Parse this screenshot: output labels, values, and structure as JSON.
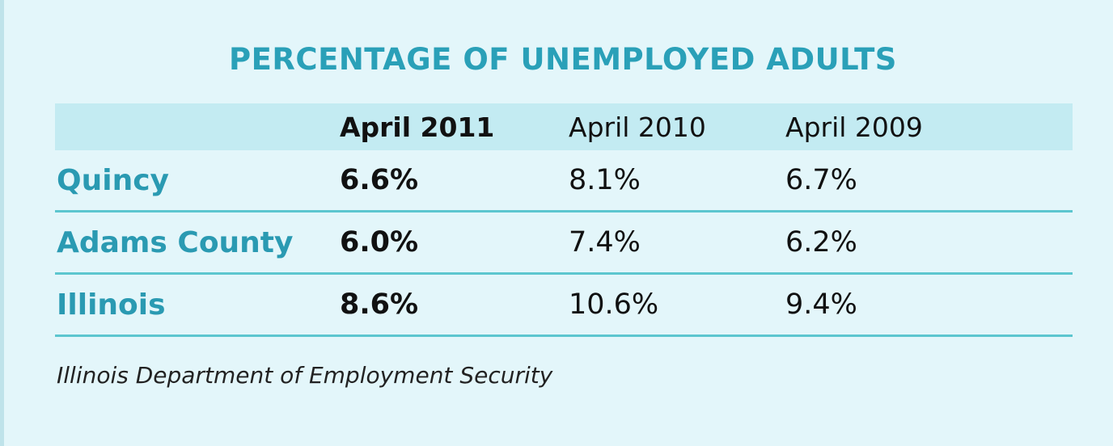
{
  "chart_data": {
    "type": "table",
    "title": "PERCENTAGE OF UNEMPLOYED ADULTS",
    "columns": [
      "April 2011",
      "April 2010",
      "April 2009"
    ],
    "rows": [
      {
        "label": "Quincy",
        "values": [
          "6.6%",
          "8.1%",
          "6.7%"
        ]
      },
      {
        "label": "Adams County",
        "values": [
          "6.0%",
          "7.4%",
          "6.2%"
        ]
      },
      {
        "label": "Illinois",
        "values": [
          "8.6%",
          "10.6%",
          "9.4%"
        ]
      }
    ],
    "source": "Illinois Department of Employment Security"
  },
  "colors": {
    "background": "#e3f6fa",
    "accent": "#2aa0b8",
    "header_band": "#c3ebf2",
    "rule": "#5cc6cf"
  }
}
